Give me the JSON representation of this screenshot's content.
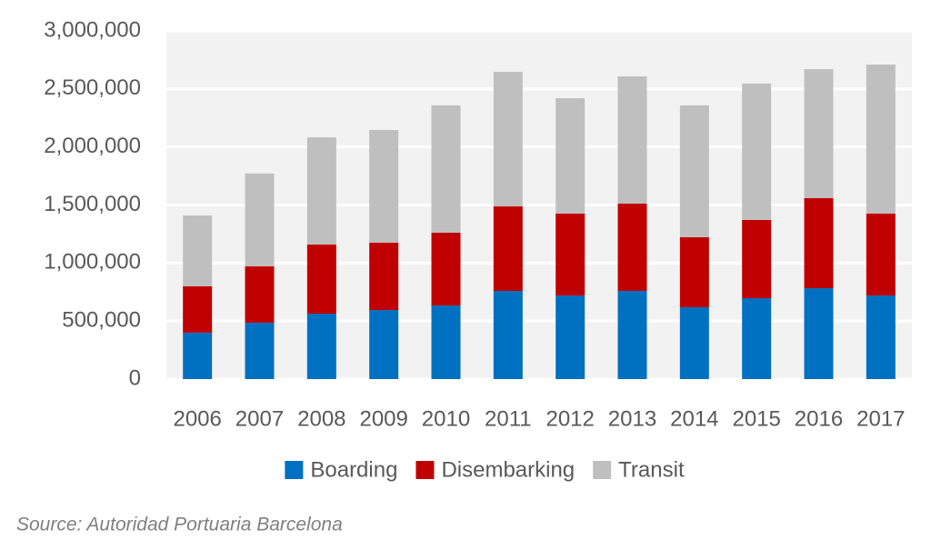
{
  "chart_data": {
    "type": "stacked_bar",
    "categories": [
      "2006",
      "2007",
      "2008",
      "2009",
      "2010",
      "2011",
      "2012",
      "2013",
      "2014",
      "2015",
      "2016",
      "2017"
    ],
    "series": [
      {
        "name": "Boarding",
        "color": "#0070c0",
        "values": [
          400000,
          486000,
          564000,
          595000,
          634000,
          760000,
          720000,
          760000,
          619000,
          697000,
          783000,
          720000
        ]
      },
      {
        "name": "Disembarking",
        "color": "#c00000",
        "values": [
          400000,
          485000,
          595000,
          580000,
          627000,
          728000,
          706000,
          752000,
          603000,
          674000,
          776000,
          706000
        ]
      },
      {
        "name": "Transit",
        "color": "#bfbfbf",
        "values": [
          610000,
          800000,
          924000,
          971000,
          1097000,
          1159000,
          994000,
          1096000,
          1136000,
          1175000,
          1112000,
          1284000
        ]
      }
    ],
    "ylim": [
      0,
      3000000
    ],
    "yticks": [
      0,
      {
        "value": 500000,
        "label": "500,000"
      },
      {
        "value": 1000000,
        "label": "1,000,000"
      },
      {
        "value": 1500000,
        "label": "1,500,000"
      },
      {
        "value": 2000000,
        "label": "2,000,000"
      },
      {
        "value": 2500000,
        "label": "2,500,000"
      },
      {
        "value": 3000000,
        "label": "3,000,000"
      }
    ],
    "grid": true,
    "source": "Source: Autoridad Portuaria Barcelona"
  }
}
